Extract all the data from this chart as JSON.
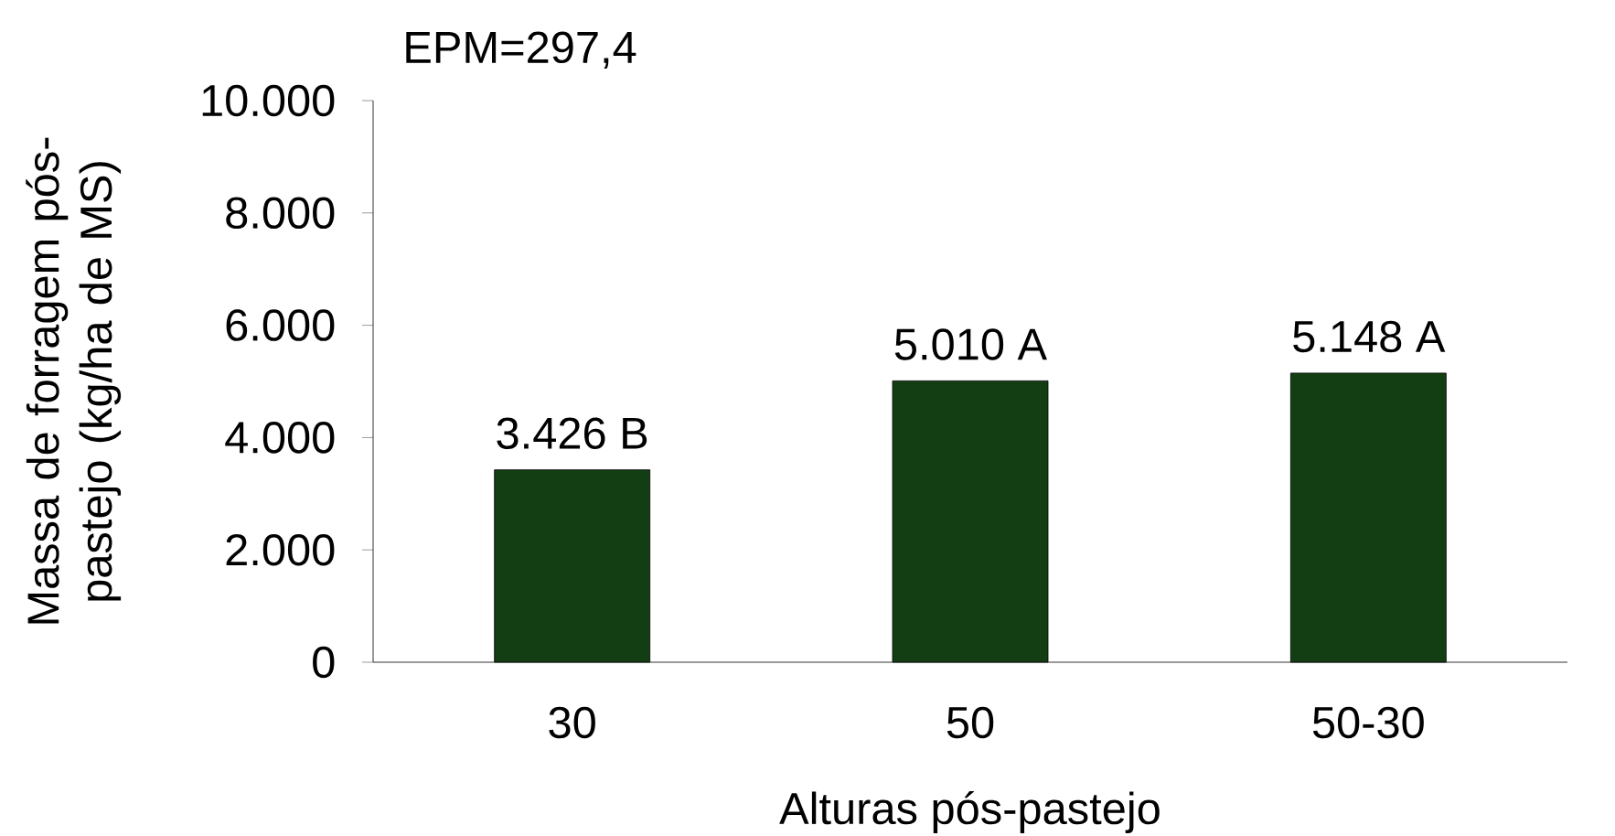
{
  "chart_data": {
    "type": "bar",
    "xlabel": "Alturas pós-pastejo",
    "ylabel": "Massa de forragem pós-pastejo (kg/ha de MS)",
    "annotations": [
      "EPM=297,4"
    ],
    "categories": [
      "30",
      "50",
      "50-30"
    ],
    "values": [
      3426,
      5010,
      5148
    ],
    "value_labels": [
      "3.426 B",
      "5.010 A",
      "5.148 A"
    ],
    "color": "#133d13",
    "ylim": [
      0,
      10000
    ],
    "yticks": [
      0,
      {
        "value": 2000,
        "label": "2.000"
      },
      {
        "value": 4000,
        "label": "4.000"
      },
      {
        "value": 6000,
        "label": "6.000"
      },
      {
        "value": 8000,
        "label": "8.000"
      },
      {
        "value": 10000,
        "label": "10.000"
      }
    ]
  }
}
